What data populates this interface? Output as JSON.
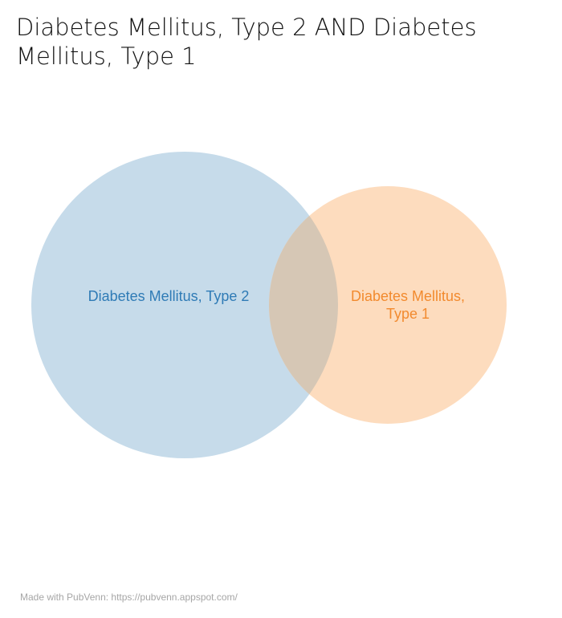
{
  "title": "Diabetes Mellitus, Type 2 AND Diabetes Mellitus, Type 1",
  "sets": [
    {
      "name": "Diabetes Mellitus, Type 2",
      "fill": "#c6dbea",
      "text_color": "#2f7bb6"
    },
    {
      "name": "Diabetes Mellitus, Type 1",
      "fill": "#fddcbe",
      "text_color": "#f28a2e"
    }
  ],
  "overlap_fill": "#d6c7b5",
  "footer": "Made with PubVenn: https://pubvenn.appspot.com/"
}
